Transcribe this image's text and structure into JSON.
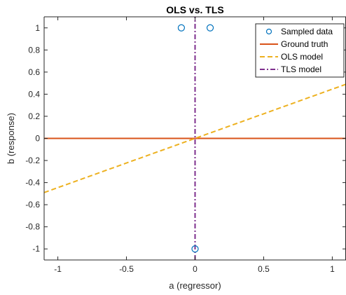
{
  "chart_data": {
    "type": "scatter",
    "title": "OLS vs. TLS",
    "xlabel": "a (regressor)",
    "ylabel": "b (response)",
    "xlim": [
      -1.1,
      1.1
    ],
    "ylim": [
      -1.1,
      1.1
    ],
    "xticks": [
      -1,
      -0.5,
      0,
      0.5,
      1
    ],
    "xtick_labels": [
      "-1",
      "-0.5",
      "0",
      "0.5",
      "1"
    ],
    "yticks": [
      -1,
      -0.8,
      -0.6,
      -0.4,
      -0.2,
      0,
      0.2,
      0.4,
      0.6,
      0.8,
      1
    ],
    "ytick_labels": [
      "-1",
      "-0.8",
      "-0.6",
      "-0.4",
      "-0.2",
      "0",
      "0.2",
      "0.4",
      "0.6",
      "0.8",
      "1"
    ],
    "grid": false,
    "legend_position": "top-right",
    "series": [
      {
        "name": "Sampled data",
        "kind": "markers",
        "marker": "circle",
        "color": "#0072BD",
        "points": [
          [
            -0.1,
            1
          ],
          [
            0.11,
            1
          ],
          [
            0,
            -1
          ]
        ]
      },
      {
        "name": "Ground truth",
        "kind": "line",
        "style": "solid",
        "color": "#D95319",
        "points": [
          [
            -1.1,
            0
          ],
          [
            1.1,
            0
          ]
        ]
      },
      {
        "name": "OLS model",
        "kind": "line",
        "style": "dashed",
        "color": "#EDB120",
        "points": [
          [
            -1.1,
            -0.49
          ],
          [
            1.1,
            0.49
          ]
        ]
      },
      {
        "name": "TLS model",
        "kind": "line",
        "style": "dashdot",
        "color": "#7E2F8E",
        "points": [
          [
            0,
            -1.1
          ],
          [
            0,
            1.1
          ]
        ]
      }
    ]
  }
}
